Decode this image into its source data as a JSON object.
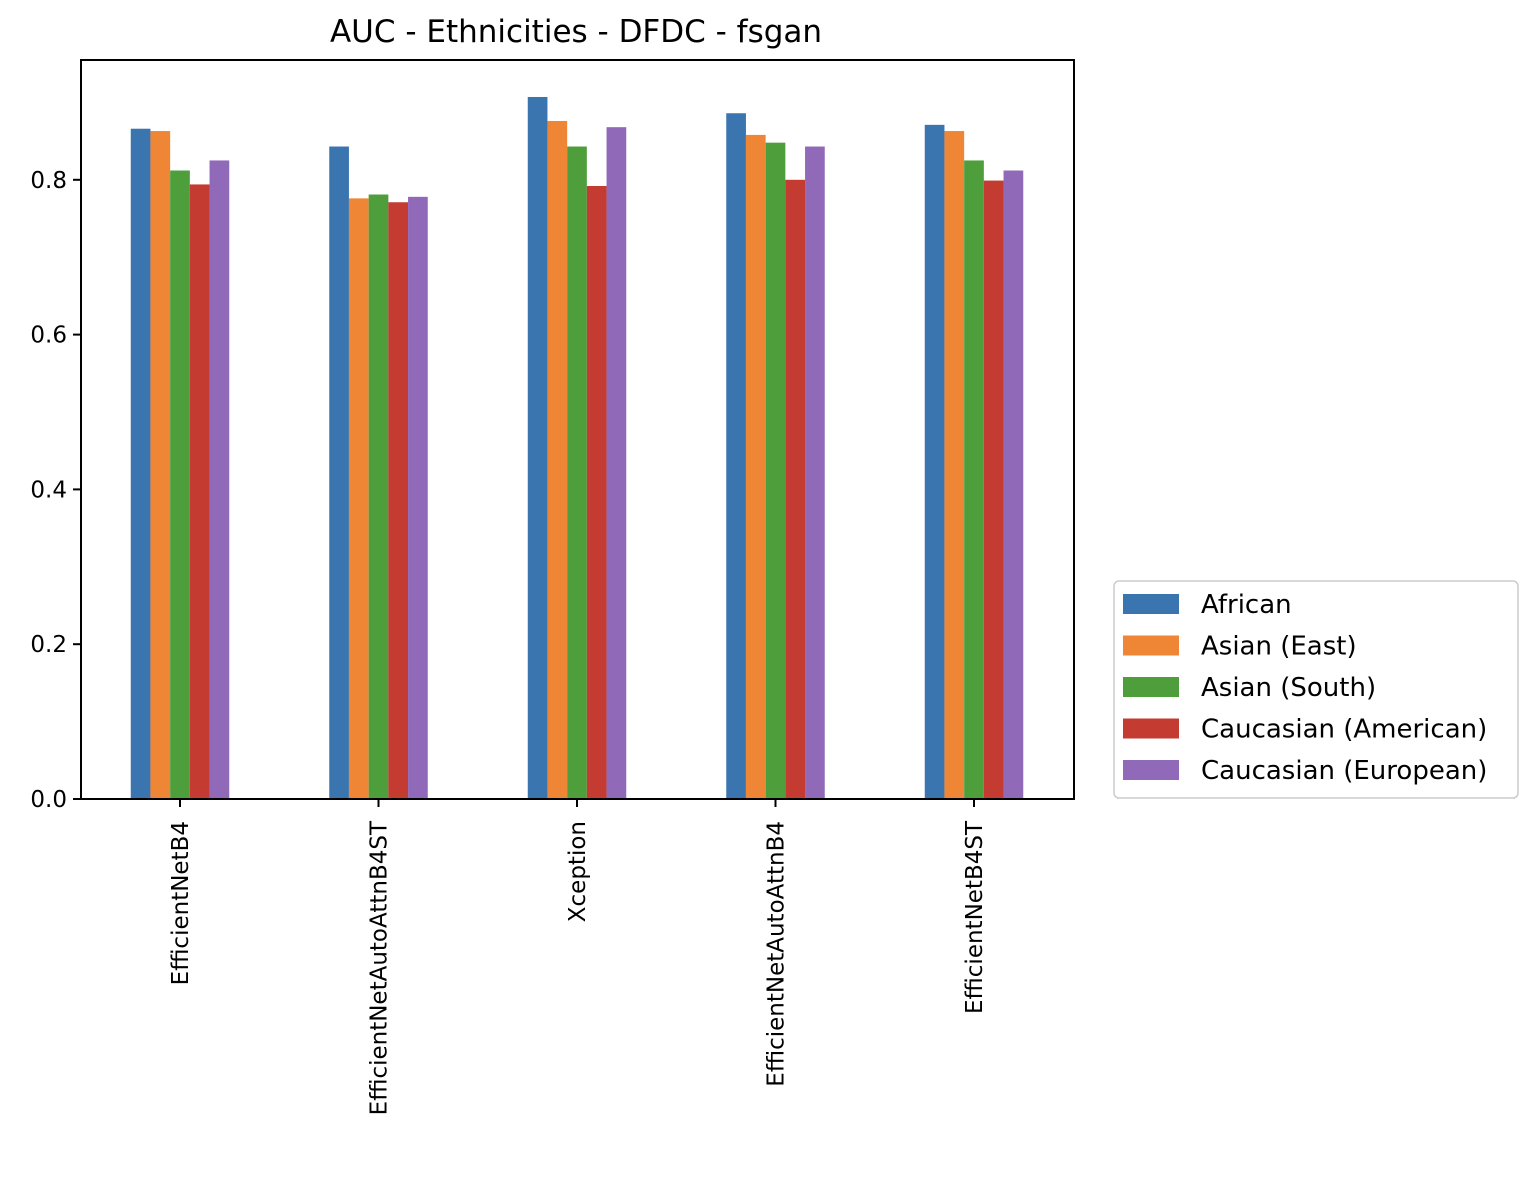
{
  "chart_data": {
    "type": "bar",
    "title": "AUC - Ethnicities - DFDC - fsgan",
    "xlabel": "",
    "ylabel": "",
    "ylim": [
      0,
      0.95
    ],
    "yticks": [
      0.0,
      0.2,
      0.4,
      0.6,
      0.8
    ],
    "ytick_labels": [
      "0.0",
      "0.2",
      "0.4",
      "0.6",
      "0.8"
    ],
    "categories": [
      "EfficientNetB4",
      "EfficientNetAutoAttnB4ST",
      "Xception",
      "EfficientNetAutoAttnB4",
      "EfficientNetB4ST"
    ],
    "legend_position": "right, lower",
    "grid": false,
    "series": [
      {
        "name": "African",
        "color": "#3a75b0",
        "values": [
          0.866,
          0.843,
          0.907,
          0.886,
          0.871
        ]
      },
      {
        "name": "Asian (East)",
        "color": "#ef8636",
        "values": [
          0.863,
          0.776,
          0.876,
          0.858,
          0.863
        ]
      },
      {
        "name": "Asian (South)",
        "color": "#4f9e3c",
        "values": [
          0.812,
          0.781,
          0.843,
          0.848,
          0.825
        ]
      },
      {
        "name": "Caucasian (American)",
        "color": "#c43b32",
        "values": [
          0.794,
          0.771,
          0.792,
          0.8,
          0.799
        ]
      },
      {
        "name": "Caucasian (European)",
        "color": "#9069b8",
        "values": [
          0.825,
          0.778,
          0.868,
          0.843,
          0.812
        ]
      }
    ]
  }
}
